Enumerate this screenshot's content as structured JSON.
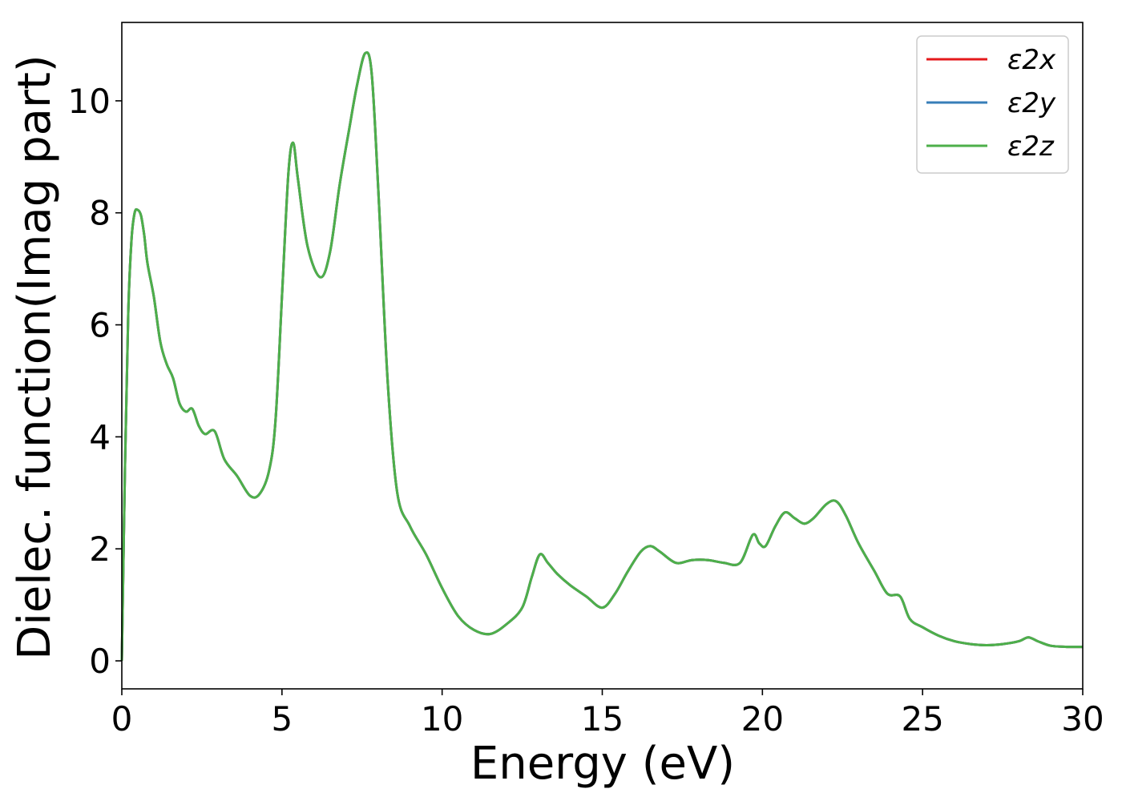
{
  "chart_data": {
    "type": "line",
    "xlabel": "Energy (eV)",
    "ylabel": "Dielec. function(Imag part)",
    "xlim": [
      0,
      30
    ],
    "ylim": [
      -0.5,
      11.4
    ],
    "xticks": [
      0,
      5,
      10,
      15,
      20,
      25,
      30
    ],
    "yticks": [
      0,
      2,
      4,
      6,
      8,
      10
    ],
    "grid": false,
    "legend_position": "top-right",
    "x": [
      0,
      0.1,
      0.2,
      0.3,
      0.4,
      0.5,
      0.6,
      0.7,
      0.8,
      1.0,
      1.2,
      1.4,
      1.6,
      1.8,
      2.0,
      2.2,
      2.4,
      2.6,
      2.9,
      3.2,
      3.6,
      4.0,
      4.3,
      4.6,
      4.8,
      5.0,
      5.2,
      5.35,
      5.5,
      5.8,
      6.2,
      6.5,
      6.8,
      7.1,
      7.35,
      7.6,
      7.8,
      8.0,
      8.3,
      8.6,
      9.0,
      9.5,
      10.0,
      10.5,
      11.0,
      11.5,
      12.0,
      12.5,
      12.8,
      13.05,
      13.3,
      13.6,
      14.0,
      14.5,
      15.0,
      15.4,
      15.8,
      16.2,
      16.5,
      16.8,
      17.3,
      17.8,
      18.3,
      18.8,
      19.3,
      19.7,
      19.9,
      20.1,
      20.4,
      20.7,
      21.0,
      21.3,
      21.6,
      22.0,
      22.3,
      22.6,
      23.0,
      23.5,
      23.9,
      24.3,
      24.6,
      25.0,
      25.5,
      26.0,
      26.5,
      27.0,
      27.5,
      28.0,
      28.3,
      28.6,
      29.0,
      29.5,
      30.0
    ],
    "series": [
      {
        "name": "ε2x",
        "color": "#e41a1c",
        "values": [
          0,
          3.5,
          6.2,
          7.5,
          8.0,
          8.05,
          7.95,
          7.6,
          7.1,
          6.5,
          5.7,
          5.3,
          5.05,
          4.6,
          4.45,
          4.5,
          4.2,
          4.05,
          4.1,
          3.6,
          3.3,
          2.95,
          2.98,
          3.4,
          4.3,
          6.5,
          8.7,
          9.25,
          8.6,
          7.4,
          6.85,
          7.3,
          8.5,
          9.5,
          10.3,
          10.85,
          10.5,
          8.5,
          5.0,
          3.0,
          2.4,
          1.9,
          1.3,
          0.8,
          0.55,
          0.48,
          0.65,
          0.95,
          1.5,
          1.9,
          1.75,
          1.55,
          1.35,
          1.15,
          0.95,
          1.2,
          1.6,
          1.95,
          2.05,
          1.95,
          1.75,
          1.8,
          1.8,
          1.75,
          1.75,
          2.25,
          2.1,
          2.05,
          2.4,
          2.65,
          2.55,
          2.45,
          2.55,
          2.8,
          2.85,
          2.6,
          2.1,
          1.6,
          1.2,
          1.15,
          0.75,
          0.6,
          0.45,
          0.35,
          0.3,
          0.28,
          0.3,
          0.35,
          0.42,
          0.35,
          0.27,
          0.25,
          0.25
        ]
      },
      {
        "name": "ε2y",
        "color": "#377eb8",
        "values": [
          0,
          3.5,
          6.2,
          7.5,
          8.0,
          8.05,
          7.95,
          7.6,
          7.1,
          6.5,
          5.7,
          5.3,
          5.05,
          4.6,
          4.45,
          4.5,
          4.2,
          4.05,
          4.1,
          3.6,
          3.3,
          2.95,
          2.98,
          3.4,
          4.3,
          6.5,
          8.7,
          9.25,
          8.6,
          7.4,
          6.85,
          7.3,
          8.5,
          9.5,
          10.3,
          10.85,
          10.5,
          8.5,
          5.0,
          3.0,
          2.4,
          1.9,
          1.3,
          0.8,
          0.55,
          0.48,
          0.65,
          0.95,
          1.5,
          1.9,
          1.75,
          1.55,
          1.35,
          1.15,
          0.95,
          1.2,
          1.6,
          1.95,
          2.05,
          1.95,
          1.75,
          1.8,
          1.8,
          1.75,
          1.75,
          2.25,
          2.1,
          2.05,
          2.4,
          2.65,
          2.55,
          2.45,
          2.55,
          2.8,
          2.85,
          2.6,
          2.1,
          1.6,
          1.2,
          1.15,
          0.75,
          0.6,
          0.45,
          0.35,
          0.3,
          0.28,
          0.3,
          0.35,
          0.42,
          0.35,
          0.27,
          0.25,
          0.25
        ]
      },
      {
        "name": "ε2z",
        "color": "#4daf4a",
        "values": [
          0,
          3.5,
          6.2,
          7.5,
          8.0,
          8.05,
          7.95,
          7.6,
          7.1,
          6.5,
          5.7,
          5.3,
          5.05,
          4.6,
          4.45,
          4.5,
          4.2,
          4.05,
          4.1,
          3.6,
          3.3,
          2.95,
          2.98,
          3.4,
          4.3,
          6.5,
          8.7,
          9.25,
          8.6,
          7.4,
          6.85,
          7.3,
          8.5,
          9.5,
          10.3,
          10.85,
          10.5,
          8.5,
          5.0,
          3.0,
          2.4,
          1.9,
          1.3,
          0.8,
          0.55,
          0.48,
          0.65,
          0.95,
          1.5,
          1.9,
          1.75,
          1.55,
          1.35,
          1.15,
          0.95,
          1.2,
          1.6,
          1.95,
          2.05,
          1.95,
          1.75,
          1.8,
          1.8,
          1.75,
          1.75,
          2.25,
          2.1,
          2.05,
          2.4,
          2.65,
          2.55,
          2.45,
          2.55,
          2.8,
          2.85,
          2.6,
          2.1,
          1.6,
          1.2,
          1.15,
          0.75,
          0.6,
          0.45,
          0.35,
          0.3,
          0.28,
          0.3,
          0.35,
          0.42,
          0.35,
          0.27,
          0.25,
          0.25
        ]
      }
    ]
  }
}
